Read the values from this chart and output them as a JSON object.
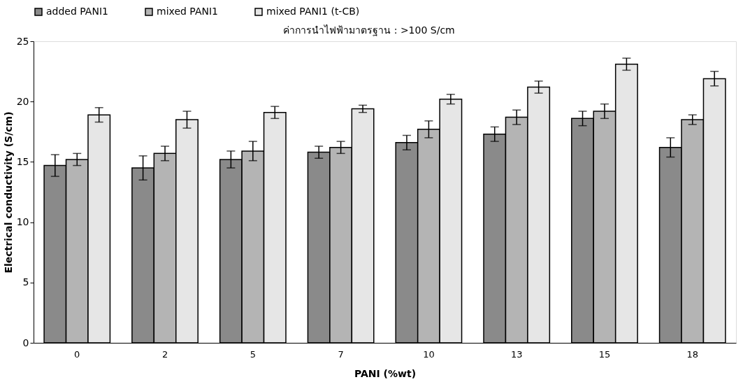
{
  "chart_data": {
    "type": "bar",
    "xlabel": "PANI (%wt)",
    "ylabel": "Electrical conductivity (S/cm)",
    "categories": [
      "0",
      "2",
      "5",
      "7",
      "10",
      "13",
      "15",
      "18"
    ],
    "series": [
      {
        "name": "added PANI1",
        "color": "#8a8a8a",
        "values": [
          14.7,
          14.5,
          15.2,
          15.8,
          16.6,
          17.3,
          18.6,
          16.2
        ],
        "errors": [
          0.9,
          1.0,
          0.7,
          0.5,
          0.6,
          0.6,
          0.6,
          0.8
        ]
      },
      {
        "name": "mixed PANI1",
        "color": "#b4b4b4",
        "values": [
          15.2,
          15.7,
          15.9,
          16.2,
          17.7,
          18.7,
          19.2,
          18.5
        ],
        "errors": [
          0.5,
          0.6,
          0.8,
          0.5,
          0.7,
          0.6,
          0.6,
          0.4
        ]
      },
      {
        "name": "mixed PANI1 (t-CB)",
        "color": "#e6e6e6",
        "values": [
          18.9,
          18.5,
          19.1,
          19.4,
          20.2,
          21.2,
          23.1,
          21.9
        ],
        "errors": [
          0.6,
          0.7,
          0.5,
          0.3,
          0.4,
          0.5,
          0.5,
          0.6
        ]
      }
    ],
    "annotations": [
      "ค่าการนำไฟฟ้ามาตรฐาน : >100 S/cm"
    ],
    "ylim": [
      0,
      25
    ],
    "yticks": [
      0,
      5,
      10,
      15,
      20,
      25
    ],
    "grid": false,
    "legend": "top"
  }
}
